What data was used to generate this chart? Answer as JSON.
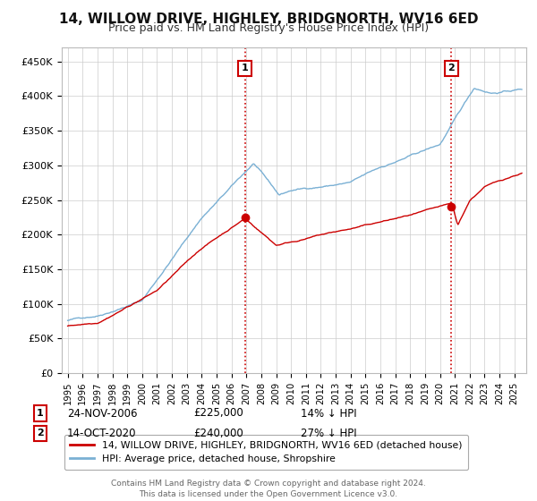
{
  "title": "14, WILLOW DRIVE, HIGHLEY, BRIDGNORTH, WV16 6ED",
  "subtitle": "Price paid vs. HM Land Registry's House Price Index (HPI)",
  "footer": "Contains HM Land Registry data © Crown copyright and database right 2024.\nThis data is licensed under the Open Government Licence v3.0.",
  "legend_label_red": "14, WILLOW DRIVE, HIGHLEY, BRIDGNORTH, WV16 6ED (detached house)",
  "legend_label_blue": "HPI: Average price, detached house, Shropshire",
  "marker1_date": "24-NOV-2006",
  "marker1_price": "£225,000",
  "marker1_label": "14% ↓ HPI",
  "marker1_x": 2006.9,
  "marker1_y": 225000,
  "marker2_date": "14-OCT-2020",
  "marker2_price": "£240,000",
  "marker2_label": "27% ↓ HPI",
  "marker2_x": 2020.78,
  "marker2_y": 240000,
  "ylim": [
    0,
    470000
  ],
  "yticks": [
    0,
    50000,
    100000,
    150000,
    200000,
    250000,
    300000,
    350000,
    400000,
    450000
  ],
  "ytick_labels": [
    "£0",
    "£50K",
    "£100K",
    "£150K",
    "£200K",
    "£250K",
    "£300K",
    "£350K",
    "£400K",
    "£450K"
  ],
  "xlim_left": 1994.6,
  "xlim_right": 2025.8,
  "red_color": "#cc0000",
  "blue_color": "#7ab0d4",
  "vline_color": "#cc0000",
  "background_color": "#ffffff",
  "grid_color": "#cccccc",
  "title_fontsize": 11,
  "subtitle_fontsize": 9
}
